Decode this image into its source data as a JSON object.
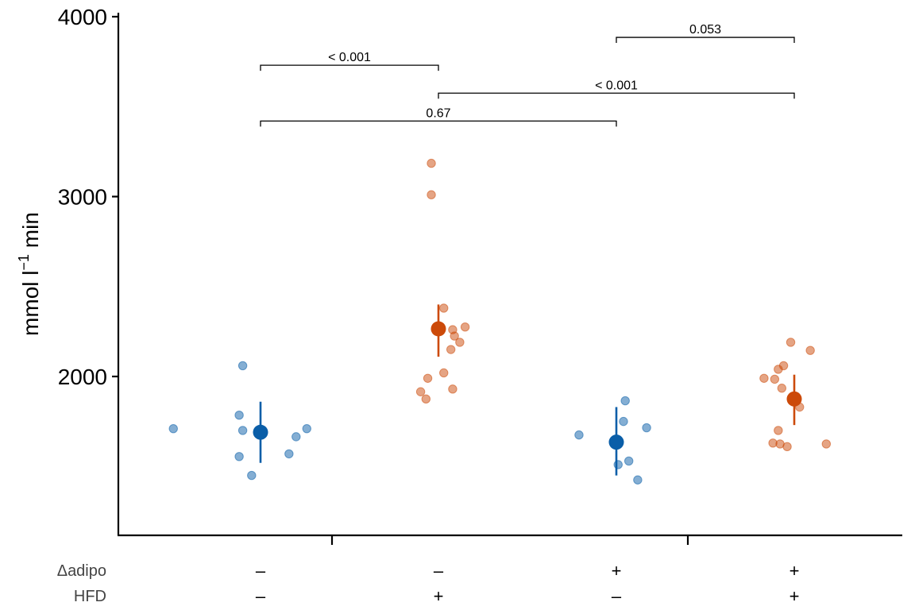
{
  "chart_data": {
    "type": "scatter",
    "ylabel_main": "mmol l",
    "ylabel_sup": "−1",
    "ylabel_tail": " min",
    "ylim": [
      1100,
      4000
    ],
    "y_ticks": [
      2000,
      3000,
      4000
    ],
    "factors": [
      {
        "name": "Δadipo",
        "values": [
          "–",
          "–",
          "+",
          "+"
        ]
      },
      {
        "name": "HFD",
        "values": [
          "–",
          "+",
          "–",
          "+"
        ]
      }
    ],
    "colors": {
      "blue": "#0a5ea8",
      "orange": "#cc4a0a"
    },
    "groups": [
      {
        "color": "blue",
        "mean": 1690,
        "lower": 1520,
        "upper": 1860,
        "points": [
          [
            -0.49,
            1710
          ],
          [
            -0.1,
            2060
          ],
          [
            -0.12,
            1785
          ],
          [
            -0.1,
            1700
          ],
          [
            -0.12,
            1555
          ],
          [
            -0.05,
            1450
          ],
          [
            0.16,
            1570
          ],
          [
            0.2,
            1665
          ],
          [
            0.26,
            1710
          ]
        ]
      },
      {
        "color": "orange",
        "mean": 2265,
        "lower": 2110,
        "upper": 2400,
        "points": [
          [
            -0.04,
            3185
          ],
          [
            -0.04,
            3010
          ],
          [
            0.03,
            2380
          ],
          [
            0.08,
            2260
          ],
          [
            0.15,
            2275
          ],
          [
            0.09,
            2225
          ],
          [
            0.12,
            2190
          ],
          [
            0.07,
            2150
          ],
          [
            -0.06,
            1990
          ],
          [
            0.03,
            2020
          ],
          [
            -0.1,
            1915
          ],
          [
            0.08,
            1930
          ],
          [
            -0.07,
            1875
          ]
        ]
      },
      {
        "color": "blue",
        "mean": 1635,
        "lower": 1450,
        "upper": 1830,
        "points": [
          [
            -0.21,
            1675
          ],
          [
            0.05,
            1865
          ],
          [
            0.04,
            1750
          ],
          [
            0.17,
            1715
          ],
          [
            0.01,
            1510
          ],
          [
            0.07,
            1530
          ],
          [
            0.12,
            1425
          ]
        ]
      },
      {
        "color": "orange",
        "mean": 1875,
        "lower": 1730,
        "upper": 2010,
        "points": [
          [
            -0.02,
            2190
          ],
          [
            0.09,
            2145
          ],
          [
            -0.06,
            2060
          ],
          [
            -0.09,
            2040
          ],
          [
            -0.17,
            1990
          ],
          [
            -0.11,
            1985
          ],
          [
            -0.07,
            1935
          ],
          [
            0.03,
            1830
          ],
          [
            -0.09,
            1700
          ],
          [
            -0.12,
            1630
          ],
          [
            -0.08,
            1625
          ],
          [
            -0.04,
            1610
          ],
          [
            0.18,
            1625
          ]
        ]
      }
    ],
    "comparisons": [
      {
        "from": 0,
        "to": 1,
        "y": 3730,
        "label": "< 0.001"
      },
      {
        "from": 1,
        "to": 3,
        "y": 3575,
        "label": "< 0.001"
      },
      {
        "from": 0,
        "to": 2,
        "y": 3420,
        "label": "0.67"
      },
      {
        "from": 2,
        "to": 3,
        "y": 3885,
        "label": "0.053"
      }
    ]
  }
}
